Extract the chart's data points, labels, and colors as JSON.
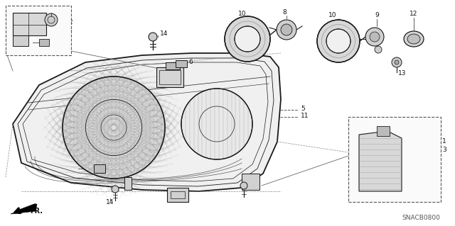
{
  "bg_color": "#ffffff",
  "diagram_code": "SNACB0800",
  "fig_width": 6.4,
  "fig_height": 3.19,
  "dpi": 100,
  "lc": "#1a1a1a",
  "gray_fill": "#e8e8e8",
  "mid_gray": "#cccccc",
  "dark_gray": "#555555"
}
